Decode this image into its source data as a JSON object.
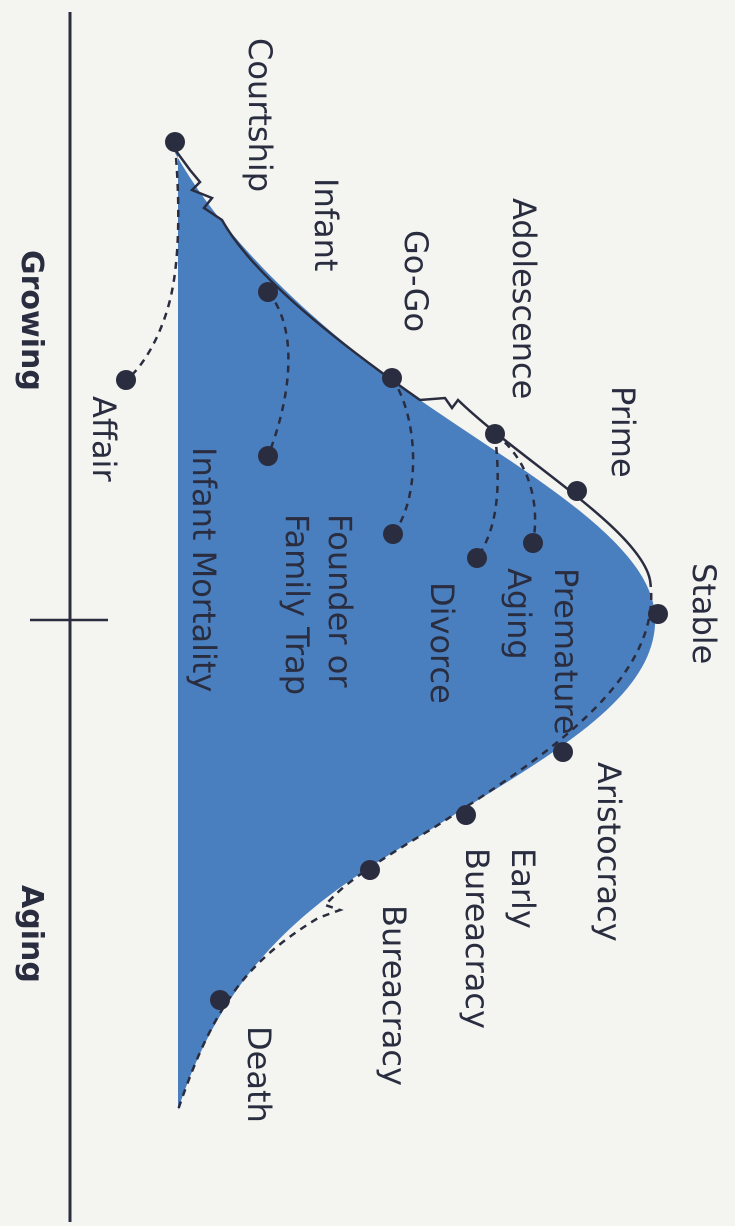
{
  "axis": {
    "phase_growing": "Growing",
    "phase_aging": "Aging"
  },
  "stages": {
    "courtship": "Courtship",
    "infant": "Infant",
    "gogo": "Go-Go",
    "adolescence": "Adolescence",
    "prime": "Prime",
    "stable": "Stable",
    "aristocracy": "Aristocracy",
    "early_bureaucracy_1": "Early",
    "early_bureaucracy_2": "Bureacracy",
    "bureaucracy": "Bureacracy",
    "death": "Death"
  },
  "traps": {
    "affair": "Affair",
    "infant_mortality": "Infant Mortality",
    "founder_1": "Founder or",
    "founder_2": "Family Trap",
    "divorce": "Divorce",
    "aging": "Aging",
    "premature": "Premature"
  },
  "colors": {
    "curve_fill": "#4a7fbf",
    "line": "#2a2d3f",
    "background": "#f4f4f1"
  }
}
